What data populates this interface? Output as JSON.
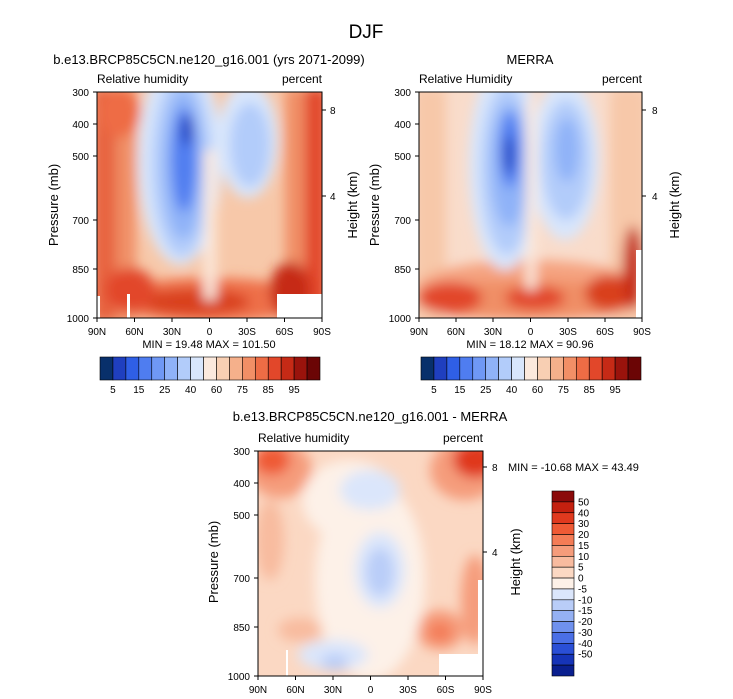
{
  "page": {
    "title": "DJF"
  },
  "chart_data": [
    {
      "type": "heatmap",
      "title": "b.e13.BRCP85C5CN.ne120_g16.001 (yrs 2071-2099)",
      "left_label": "Relative humidity",
      "right_label": "percent",
      "ylabel": "Pressure (mb)",
      "y2label": "Height (km)",
      "x_ticks": [
        "90N",
        "60N",
        "30N",
        "0",
        "30S",
        "60S",
        "90S"
      ],
      "y_ticks": [
        "300",
        "400",
        "500",
        "700",
        "850",
        "1000"
      ],
      "y2_ticks": [
        "8",
        "4"
      ],
      "stats": "MIN =  19.48  MAX = 101.50",
      "colorbar_labels": [
        "5",
        "15",
        "25",
        "40",
        "60",
        "75",
        "85",
        "95"
      ],
      "colorbar_colors": [
        "#08306b",
        "#1f3fbf",
        "#2f5fe6",
        "#4f7df0",
        "#6f98f5",
        "#8fb2f8",
        "#b2ccfa",
        "#d8e6fc",
        "#fbe9dd",
        "#f8cfb3",
        "#f5b08b",
        "#f28f66",
        "#ee6c45",
        "#e2472a",
        "#c62a16",
        "#9a130c",
        "#6b0505"
      ],
      "ylim": [
        1000,
        300
      ]
    },
    {
      "type": "heatmap",
      "title": "MERRA",
      "left_label": "Relative Humidity",
      "right_label": "percent",
      "ylabel": "Pressure (mb)",
      "y2label": "Height (km)",
      "x_ticks": [
        "90N",
        "60N",
        "30N",
        "0",
        "30S",
        "60S",
        "90S"
      ],
      "y_ticks": [
        "300",
        "400",
        "500",
        "700",
        "850",
        "1000"
      ],
      "y2_ticks": [
        "8",
        "4"
      ],
      "stats": "MIN =  18.12  MAX =  90.96",
      "colorbar_labels": [
        "5",
        "15",
        "25",
        "40",
        "60",
        "75",
        "85",
        "95"
      ],
      "colorbar_colors": [
        "#08306b",
        "#1f3fbf",
        "#2f5fe6",
        "#4f7df0",
        "#6f98f5",
        "#8fb2f8",
        "#b2ccfa",
        "#d8e6fc",
        "#fbe9dd",
        "#f8cfb3",
        "#f5b08b",
        "#f28f66",
        "#ee6c45",
        "#e2472a",
        "#c62a16",
        "#9a130c",
        "#6b0505"
      ],
      "ylim": [
        1000,
        300
      ]
    },
    {
      "type": "heatmap",
      "title": "b.e13.BRCP85C5CN.ne120_g16.001 - MERRA",
      "left_label": "Relative humidity",
      "right_label": "percent",
      "ylabel": "Pressure (mb)",
      "y2label": "Height (km)",
      "x_ticks": [
        "90N",
        "60N",
        "30N",
        "0",
        "30S",
        "60S",
        "90S"
      ],
      "y_ticks": [
        "300",
        "400",
        "500",
        "700",
        "850",
        "1000"
      ],
      "y2_ticks": [
        "8",
        "4"
      ],
      "stats": "MIN = -10.68  MAX =  43.49",
      "colorbar_labels": [
        "50",
        "40",
        "30",
        "20",
        "15",
        "10",
        "5",
        "0",
        "-5",
        "-10",
        "-15",
        "-20",
        "-30",
        "-40",
        "-50"
      ],
      "colorbar_colors": [
        "#8b0a0a",
        "#c4200f",
        "#e0391e",
        "#ef5a35",
        "#f47c56",
        "#f59c7b",
        "#f8bb9f",
        "#fbd8c3",
        "#fdf1e8",
        "#dbe6fb",
        "#b9cdf8",
        "#95b1f3",
        "#6f91ee",
        "#4a6fe6",
        "#2a4fd6",
        "#1634b8",
        "#0a1f8f"
      ],
      "ylim": [
        1000,
        300
      ]
    }
  ]
}
